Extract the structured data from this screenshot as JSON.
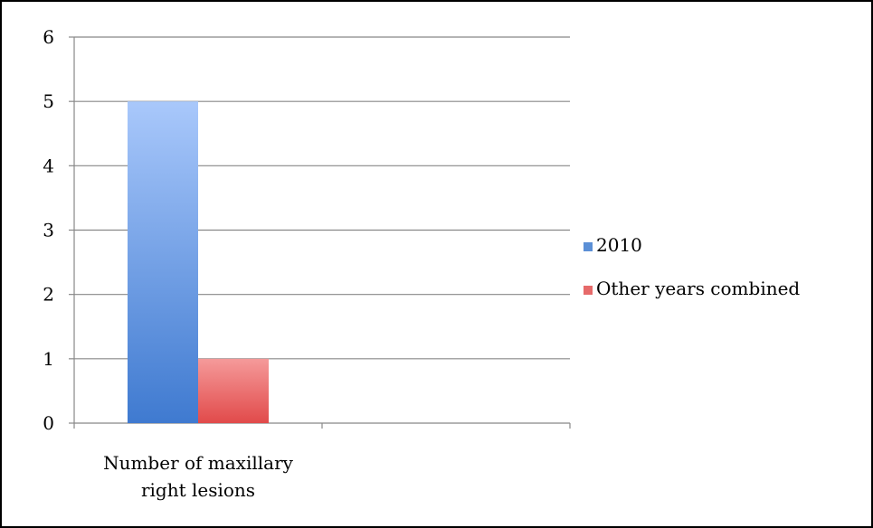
{
  "chart_data": {
    "type": "bar",
    "title": "",
    "xlabel": "",
    "ylabel": "",
    "categories": [
      "Number of maxillary right lesions",
      ""
    ],
    "category_lines": [
      [
        "Number of maxillary",
        "right lesions"
      ],
      []
    ],
    "series": [
      {
        "name": "2010",
        "values": [
          5,
          null
        ],
        "color": "#5b8fd6"
      },
      {
        "name": "Other years combined",
        "values": [
          1,
          null
        ],
        "color": "#e66a6a"
      }
    ],
    "ylim": [
      0,
      6
    ],
    "yticks": [
      0,
      1,
      2,
      3,
      4,
      5,
      6
    ],
    "grid": true,
    "legend_position": "right"
  }
}
